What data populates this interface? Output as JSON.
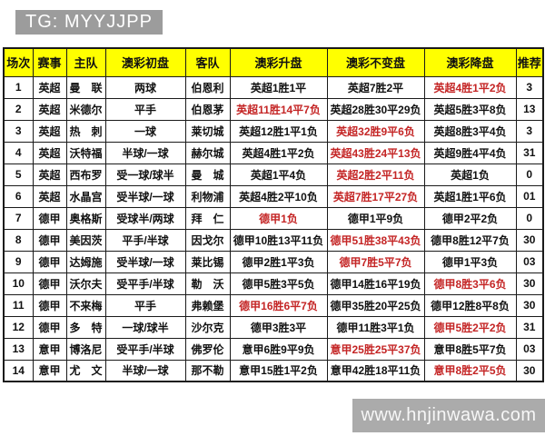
{
  "title": "TG: MYYJJPP",
  "watermark": "www.hnjinwawa.com",
  "colors": {
    "header_bg": "#ffff00",
    "highlight_red": "#c42525",
    "title_box_bg": "#9c9c9c",
    "watermark_bg": "#ababab",
    "border": "#1a1a1a"
  },
  "table": {
    "headers": [
      "场次",
      "赛事",
      "主队",
      "澳彩初盘",
      "客队",
      "澳彩升盘",
      "澳彩不变盘",
      "澳彩降盘",
      "推荐"
    ],
    "rows": [
      {
        "cells": [
          "1",
          "英超",
          "曼　联",
          "两球",
          "伯恩利",
          "英超1胜1平",
          "英超7胜2平",
          "英超4胜1平2负",
          "3"
        ],
        "red": [
          7
        ]
      },
      {
        "cells": [
          "2",
          "英超",
          "米德尔",
          "平手",
          "伯恩茅",
          "英超11胜14平7负",
          "英超28胜30平29负",
          "英超5胜3平8负",
          "13"
        ],
        "red": [
          5
        ]
      },
      {
        "cells": [
          "3",
          "英超",
          "热　刺",
          "一球",
          "莱切城",
          "英超12胜1平1负",
          "英超32胜9平6负",
          "英超8胜3平4负",
          "3"
        ],
        "red": [
          6
        ]
      },
      {
        "cells": [
          "4",
          "英超",
          "沃特福",
          "半球/一球",
          "赫尔城",
          "英超4胜1平2负",
          "英超43胜24平13负",
          "英超9胜4平4负",
          "31"
        ],
        "red": [
          6
        ]
      },
      {
        "cells": [
          "5",
          "英超",
          "西布罗",
          "受一球/球半",
          "曼　城",
          "英超1平4负",
          "英超2胜2平11负",
          "英超1负",
          "0"
        ],
        "red": [
          6
        ]
      },
      {
        "cells": [
          "6",
          "英超",
          "水晶宫",
          "受半球/一球",
          "利物浦",
          "英超4胜2平10负",
          "英超7胜17平27负",
          "英超1胜1平6负",
          "01"
        ],
        "red": [
          6
        ]
      },
      {
        "cells": [
          "7",
          "德甲",
          "奥格斯",
          "受球半/两球",
          "拜　仁",
          "德甲1负",
          "德甲1平9负",
          "德甲2平2负",
          "0"
        ],
        "red": [
          5
        ]
      },
      {
        "cells": [
          "8",
          "德甲",
          "美因茨",
          "平手/半球",
          "因戈尔",
          "德甲10胜13平11负",
          "德甲51胜38平43负",
          "德甲8胜12平7负",
          "30"
        ],
        "red": [
          6
        ]
      },
      {
        "cells": [
          "9",
          "德甲",
          "达姆施",
          "受半球/一球",
          "莱比锡",
          "德甲2胜1平3负",
          "德甲7胜5平7负",
          "德甲1平3负",
          "03"
        ],
        "red": [
          6
        ]
      },
      {
        "cells": [
          "10",
          "德甲",
          "沃尔夫",
          "受平手/半球",
          "勒　沃",
          "德甲5胜3平5负",
          "德甲14胜16平19负",
          "德甲8胜3平6负",
          "30"
        ],
        "red": [
          7
        ]
      },
      {
        "cells": [
          "11",
          "德甲",
          "不来梅",
          "平手",
          "弗赖堡",
          "德甲16胜6平7负",
          "德甲35胜20平25负",
          "德甲12胜8平8负",
          "30"
        ],
        "red": [
          5
        ]
      },
      {
        "cells": [
          "12",
          "德甲",
          "多　特",
          "一球/球半",
          "沙尔克",
          "德甲3胜3平",
          "德甲11胜3平1负",
          "德甲5胜2平2负",
          "31"
        ],
        "red": [
          7
        ]
      },
      {
        "cells": [
          "13",
          "意甲",
          "博洛尼",
          "受平手/半球",
          "佛罗伦",
          "意甲6胜9平9负",
          "意甲25胜25平37负",
          "意甲8胜5平7负",
          "03"
        ],
        "red": [
          6
        ]
      },
      {
        "cells": [
          "14",
          "意甲",
          "尤　文",
          "半球/一球",
          "那不勒",
          "意甲15胜1平2负",
          "意甲42胜18平11负",
          "意甲8胜2平5负",
          "30"
        ],
        "red": [
          7
        ]
      }
    ]
  }
}
